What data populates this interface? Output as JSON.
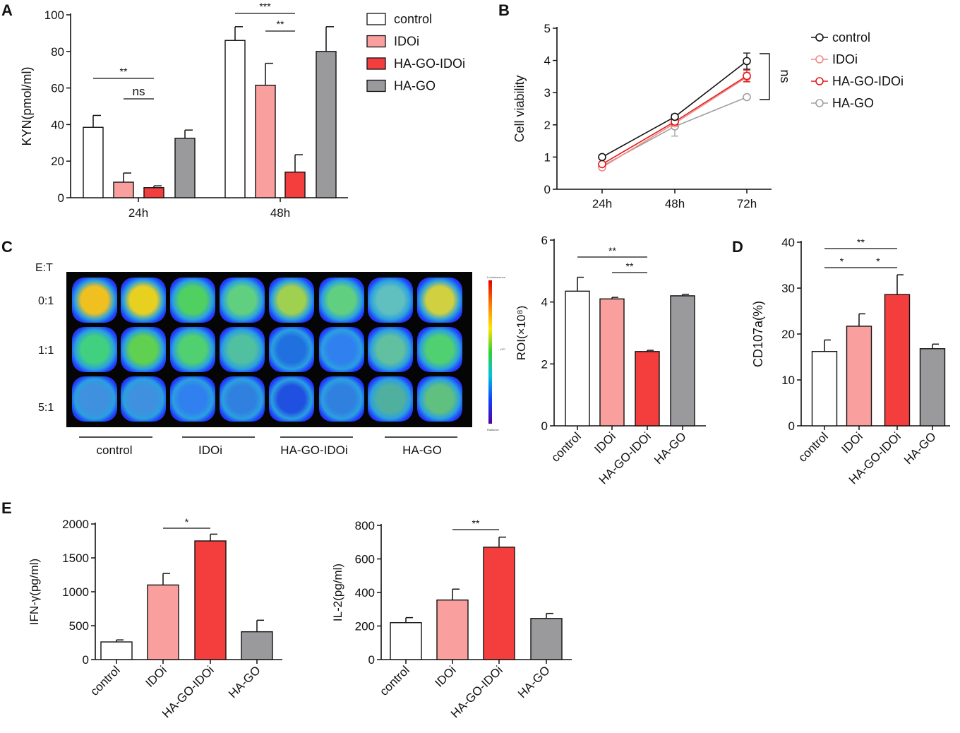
{
  "panels": {
    "A": {
      "label": "A",
      "chart_data": {
        "type": "bar",
        "categories": [
          "24h",
          "48h"
        ],
        "series": [
          {
            "name": "control",
            "values": [
              38.5,
              86
            ],
            "errors": [
              6.5,
              7.5
            ]
          },
          {
            "name": "IDOi",
            "values": [
              8.5,
              61.5
            ],
            "errors": [
              5,
              12
            ]
          },
          {
            "name": "HA-GO-IDOi",
            "values": [
              5.5,
              14
            ],
            "errors": [
              1,
              9.5
            ]
          },
          {
            "name": "HA-GO",
            "values": [
              32.5,
              80
            ],
            "errors": [
              4.5,
              13.5
            ]
          }
        ],
        "ylabel": "KYN(pmol/ml)",
        "ylim": [
          0,
          100
        ],
        "yticks": [
          "0",
          "20",
          "40",
          "60",
          "80",
          "100"
        ],
        "significance": [
          {
            "label": "**",
            "group": "24h",
            "from": "control",
            "to": "HA-GO-IDOi"
          },
          {
            "label": "ns",
            "group": "24h",
            "from": "IDOi",
            "to": "HA-GO-IDOi"
          },
          {
            "label": "***",
            "group": "48h",
            "from": "control",
            "to": "HA-GO-IDOi"
          },
          {
            "label": "**",
            "group": "48h",
            "from": "IDOi",
            "to": "HA-GO-IDOi"
          }
        ]
      }
    },
    "B": {
      "label": "B",
      "chart_data": {
        "type": "line",
        "x": [
          "24h",
          "48h",
          "72h"
        ],
        "series": [
          {
            "name": "control",
            "values": [
              1.0,
              2.25,
              3.98
            ],
            "errors": [
              0.05,
              0.08,
              0.25
            ]
          },
          {
            "name": "IDOi",
            "values": [
              0.68,
              2.05,
              3.48
            ],
            "errors": [
              0.05,
              0.1,
              0.15
            ]
          },
          {
            "name": "HA-GO-IDOi",
            "values": [
              0.78,
              2.1,
              3.52
            ],
            "errors": [
              0.05,
              0.1,
              0.18
            ]
          },
          {
            "name": "HA-GO",
            "values": [
              0.72,
              1.95,
              2.86
            ],
            "errors": [
              0.05,
              0.3,
              0.05
            ]
          }
        ],
        "ylabel": "Cell viability",
        "ylim": [
          0,
          5
        ],
        "yticks": [
          "0",
          "1",
          "2",
          "3",
          "4",
          "5"
        ],
        "annotation": "ns"
      }
    },
    "C": {
      "label": "C",
      "image": {
        "et_label": "E:T",
        "rows": [
          "0:1",
          "1:1",
          "5:1"
        ],
        "groups": [
          "control",
          "IDOi",
          "HA-GO-IDOi",
          "HA-GO"
        ],
        "colorbar_top": "Luminescence",
        "colorbar_mid": "x10⁷",
        "colorbar_bottom": "Radiance"
      },
      "chart_data": {
        "type": "bar",
        "categories": [
          "control",
          "IDOi",
          "HA-GO-IDOi",
          "HA-GO"
        ],
        "values": [
          4.35,
          4.1,
          2.4,
          4.2
        ],
        "errors": [
          0.45,
          0.05,
          0.04,
          0.05
        ],
        "ylabel": "ROI(×10⁸)",
        "ylim": [
          0,
          6
        ],
        "yticks": [
          "0",
          "2",
          "4",
          "6"
        ],
        "significance": [
          {
            "label": "**",
            "from": "control",
            "to": "HA-GO-IDOi"
          },
          {
            "label": "**",
            "from": "IDOi",
            "to": "HA-GO-IDOi"
          }
        ]
      }
    },
    "D": {
      "label": "D",
      "chart_data": {
        "type": "bar",
        "categories": [
          "control",
          "IDOi",
          "HA-GO-IDOi",
          "HA-GO"
        ],
        "values": [
          16.2,
          21.7,
          28.6,
          16.8
        ],
        "errors": [
          2.5,
          2.7,
          4.3,
          1.0
        ],
        "ylabel": "CD107a(%)",
        "ylim": [
          0,
          40
        ],
        "yticks": [
          "0",
          "10",
          "20",
          "30",
          "40"
        ],
        "significance": [
          {
            "label": "**",
            "from": "control",
            "to": "HA-GO-IDOi"
          },
          {
            "label": "*",
            "from": "control",
            "to": "IDOi"
          },
          {
            "label": "*",
            "from": "IDOi",
            "to": "HA-GO-IDOi"
          }
        ]
      }
    },
    "E": {
      "label": "E",
      "chart_data": [
        {
          "type": "bar",
          "categories": [
            "control",
            "IDOi",
            "HA-GO-IDOi",
            "HA-GO"
          ],
          "values": [
            260,
            1100,
            1750,
            410
          ],
          "errors": [
            30,
            170,
            100,
            170
          ],
          "ylabel": "IFN-γ(pg/ml)",
          "ylim": [
            0,
            2000
          ],
          "yticks": [
            "0",
            "500",
            "1000",
            "1500",
            "2000"
          ],
          "significance": [
            {
              "label": "*",
              "from": "IDOi",
              "to": "HA-GO-IDOi"
            }
          ]
        },
        {
          "type": "bar",
          "categories": [
            "control",
            "IDOi",
            "HA-GO-IDOi",
            "HA-GO"
          ],
          "values": [
            220,
            355,
            670,
            245
          ],
          "errors": [
            30,
            65,
            60,
            30
          ],
          "ylabel": "IL-2(pg/ml)",
          "ylim": [
            0,
            800
          ],
          "yticks": [
            "0",
            "200",
            "400",
            "600",
            "800"
          ],
          "significance": [
            {
              "label": "**",
              "from": "IDOi",
              "to": "HA-GO-IDOi"
            }
          ]
        }
      ]
    }
  },
  "colors": {
    "control": "#ffffff",
    "IDOi": "#f9a09e",
    "HA-GO-IDOi": "#f43e3e",
    "HA-GO": "#9a999c",
    "line_control": "#111111",
    "line_IDOi": "#f28a8a",
    "line_HA-GO-IDOi": "#e31a1a",
    "line_HA-GO": "#a0a0a0"
  }
}
